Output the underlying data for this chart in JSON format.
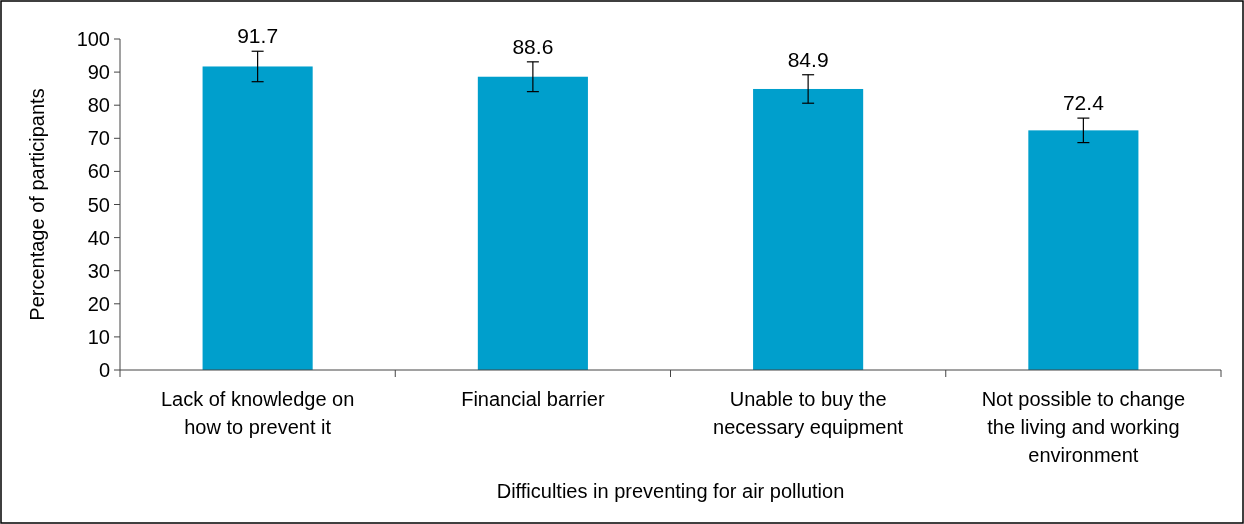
{
  "chart_data": {
    "type": "bar",
    "xlabel": "Difficulties in preventing for air pollution",
    "ylabel": "Percentage of participants",
    "categories": [
      "Lack of knowledge on how to prevent it",
      "Financial barrier",
      "Unable to buy the necessary equipment",
      "Not possible to change the living and working environment"
    ],
    "values": [
      91.7,
      88.6,
      84.9,
      72.4
    ],
    "errors": [
      4.6,
      4.5,
      4.3,
      3.7
    ],
    "color": "#009fcc",
    "data_labels": true,
    "ylim": [
      0,
      100
    ],
    "yticks": [
      0,
      10,
      20,
      30,
      40,
      50,
      60,
      70,
      80,
      90,
      100
    ],
    "grid": false
  }
}
